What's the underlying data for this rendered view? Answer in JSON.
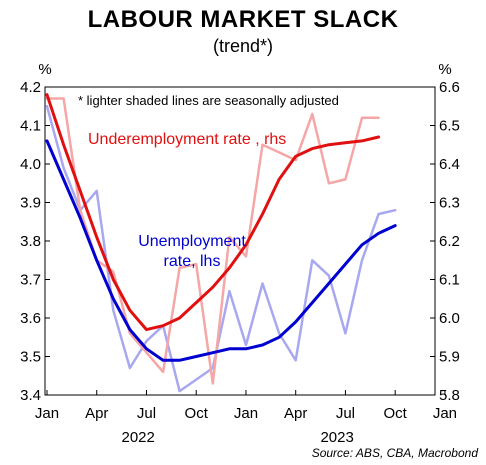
{
  "chart_data": {
    "type": "line",
    "title": "LABOUR MARKET SLACK",
    "subtitle": "(trend*)",
    "source": "Source: ABS, CBA, Macrobond",
    "note": "*  lighter shaded lines are seasonally adjusted",
    "left_axis": {
      "unit": "%",
      "ylim": [
        3.4,
        4.2
      ],
      "ticks": [
        "3.4",
        "3.5",
        "3.6",
        "3.7",
        "3.8",
        "3.9",
        "4.0",
        "4.1",
        "4.2"
      ]
    },
    "right_axis": {
      "unit": "%",
      "ylim": [
        5.8,
        6.6
      ],
      "ticks": [
        "5.8",
        "5.9",
        "6.0",
        "6.1",
        "6.2",
        "6.3",
        "6.4",
        "6.5",
        "6.6"
      ]
    },
    "x_axis": {
      "months": [
        "Jan 2022",
        "Feb 2022",
        "Mar 2022",
        "Apr 2022",
        "May 2022",
        "Jun 2022",
        "Jul 2022",
        "Aug 2022",
        "Sep 2022",
        "Oct 2022",
        "Nov 2022",
        "Dec 2022",
        "Jan 2023",
        "Feb 2023",
        "Mar 2023",
        "Apr 2023",
        "May 2023",
        "Jun 2023",
        "Jul 2023",
        "Aug 2023",
        "Sep 2023",
        "Oct 2023",
        "Nov 2023",
        "Dec 2023"
      ],
      "tick_labels": [
        "Jan",
        "Apr",
        "Jul",
        "Oct",
        "Jan",
        "Apr",
        "Jul",
        "Oct",
        "Jan"
      ],
      "year_labels": [
        "2022",
        "2023"
      ]
    },
    "series": [
      {
        "name": "Unemployment rate, lhs",
        "axis": "left",
        "kind": "sa",
        "color": "#a8a8f0",
        "values": [
          4.15,
          3.99,
          3.88,
          3.93,
          3.62,
          3.47,
          3.54,
          3.58,
          3.41,
          3.44,
          3.47,
          3.67,
          3.53,
          3.69,
          3.56,
          3.49,
          3.75,
          3.71,
          3.56,
          3.75,
          3.87,
          3.88
        ]
      },
      {
        "name": "Underemployment rate, rhs",
        "axis": "right",
        "kind": "sa",
        "color": "#f5a6a6",
        "values": [
          6.57,
          6.57,
          6.28,
          6.15,
          6.12,
          5.96,
          5.91,
          5.86,
          6.13,
          6.14,
          5.83,
          6.21,
          6.16,
          6.45,
          6.43,
          6.41,
          6.53,
          6.35,
          6.36,
          6.52,
          6.52
        ]
      },
      {
        "name": "Unemployment rate, lhs",
        "axis": "left",
        "kind": "trend",
        "color": "#0000d0",
        "values": [
          4.06,
          3.96,
          3.86,
          3.75,
          3.65,
          3.57,
          3.52,
          3.49,
          3.49,
          3.5,
          3.51,
          3.52,
          3.52,
          3.53,
          3.55,
          3.59,
          3.64,
          3.69,
          3.74,
          3.79,
          3.82,
          3.84
        ]
      },
      {
        "name": "Underemployment rate, rhs",
        "axis": "right",
        "kind": "trend",
        "color": "#e01010",
        "values": [
          6.58,
          6.45,
          6.33,
          6.21,
          6.1,
          6.02,
          5.97,
          5.98,
          6.0,
          6.04,
          6.08,
          6.13,
          6.19,
          6.27,
          6.36,
          6.42,
          6.44,
          6.45,
          6.455,
          6.46,
          6.47
        ]
      }
    ],
    "series_labels": {
      "underemployment": "Underemployment rate , rhs",
      "unemployment_line1": "Unemployment",
      "unemployment_line2": "rate, lhs"
    },
    "grid": false,
    "legend": "inline labels"
  }
}
